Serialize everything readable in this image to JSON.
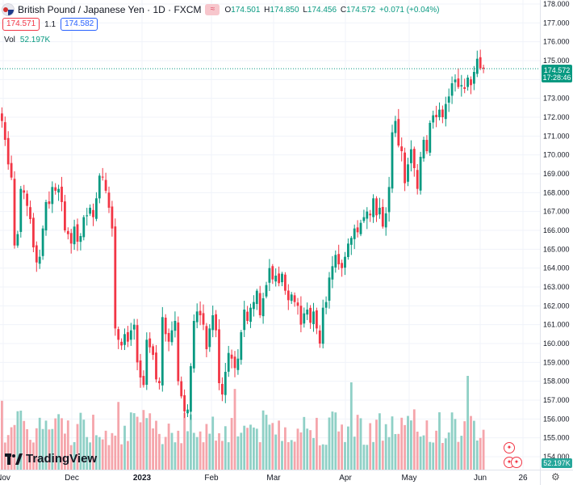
{
  "header": {
    "title": "British Pound / Japanese Yen · 1D · FXCM",
    "badge": "≈",
    "ohlc": [
      {
        "label": "O",
        "value": "174.501"
      },
      {
        "label": "H",
        "value": "174.850"
      },
      {
        "label": "L",
        "value": "174.456"
      },
      {
        "label": "C",
        "value": "174.572"
      }
    ],
    "change": "+0.071 (+0.04%)"
  },
  "trade": {
    "sell_price": "174.571",
    "spread": "1.1",
    "buy_price": "174.582"
  },
  "volume_legend": {
    "label": "Vol",
    "value": "52.197K"
  },
  "price_tag": {
    "price": "174.572",
    "countdown": "17:28:46"
  },
  "volume_tag": "52.197K",
  "logo_text": "TradingView",
  "colors": {
    "up": "#089981",
    "down": "#f23645",
    "vol_up": "#8fd0c6",
    "vol_down": "#f5a5ab",
    "grid": "#f0f3fa"
  },
  "chart_data": {
    "type": "candlestick",
    "symbol": "GBPJPY",
    "interval": "1D",
    "y_axis_ticks": [
      "178.000",
      "177.000",
      "176.000",
      "175.000",
      "174.000",
      "173.000",
      "172.000",
      "171.000",
      "170.000",
      "169.000",
      "168.000",
      "167.000",
      "166.000",
      "165.000",
      "164.000",
      "163.000",
      "162.000",
      "161.000",
      "160.000",
      "159.000",
      "158.000",
      "157.000",
      "156.000",
      "155.000",
      "154.000"
    ],
    "ylim": [
      153.8,
      178.4
    ],
    "x_axis_labels": [
      "Nov",
      "Dec",
      "2023",
      "Feb",
      "Mar",
      "Apr",
      "May",
      "Jun",
      "26"
    ],
    "last_price": 174.572,
    "closes": [
      171.8,
      170.8,
      169.5,
      168.8,
      165.2,
      165.8,
      168.2,
      168.0,
      167.3,
      166.6,
      165.1,
      164.3,
      164.6,
      166.1,
      167.5,
      167.4,
      168.3,
      168.1,
      168.2,
      167.5,
      166.0,
      165.8,
      165.3,
      166.2,
      165.4,
      165.7,
      166.7,
      166.8,
      167.2,
      166.7,
      167.7,
      168.9,
      168.8,
      168.1,
      167.2,
      166.1,
      160.8,
      160.2,
      159.9,
      160.5,
      160.1,
      160.7,
      161.0,
      159.0,
      158.2,
      157.8,
      160.2,
      159.8,
      159.4,
      158.1,
      157.9,
      161.4,
      160.5,
      160.1,
      160.7,
      161.2,
      158.0,
      157.2,
      156.4,
      156.5,
      158.8,
      161.2,
      161.7,
      161.5,
      161.0,
      159.7,
      160.8,
      161.5,
      160.7,
      157.9,
      157.3,
      158.5,
      159.5,
      159.2,
      158.7,
      159.2,
      160.6,
      161.8,
      161.2,
      161.9,
      162.2,
      162.8,
      161.5,
      162.4,
      163.1,
      164.0,
      163.4,
      163.6,
      163.2,
      163.7,
      162.8,
      162.3,
      162.6,
      162.2,
      162.0,
      161.0,
      161.6,
      161.8,
      161.1,
      161.7,
      160.8,
      160.0,
      161.9,
      162.2,
      163.5,
      164.1,
      164.7,
      164.2,
      164.0,
      164.6,
      165.3,
      165.6,
      166.1,
      165.9,
      166.4,
      166.7,
      167.0,
      166.8,
      167.7,
      166.8,
      167.2,
      166.2,
      166.9,
      168.3,
      171.2,
      171.8,
      170.5,
      170.2,
      168.5,
      169.5,
      170.3,
      169.3,
      168.2,
      169.9,
      170.8,
      170.2,
      171.7,
      172.1,
      172.0,
      172.4,
      172.0,
      172.7,
      173.1,
      173.8,
      174.0,
      173.6,
      173.7,
      173.5,
      174.1,
      173.7,
      174.4,
      175.1,
      174.6,
      174.572
    ]
  }
}
